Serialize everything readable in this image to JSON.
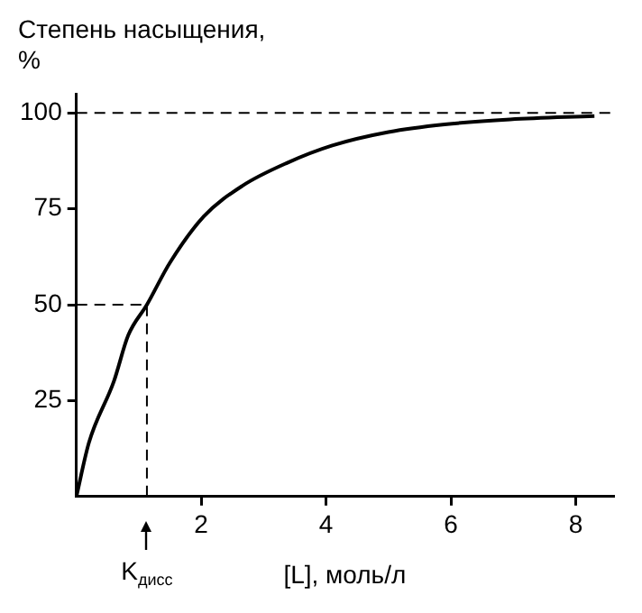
{
  "chart_data": {
    "type": "line",
    "ylabel": "Степень насыщения, %",
    "xlabel": "[L], моль/л",
    "x": [
      0,
      0.2,
      0.6,
      0.83,
      1.13,
      1.5,
      2.04,
      2.66,
      3.38,
      4.1,
      5.0,
      5.9,
      6.95,
      8.3
    ],
    "series": [
      {
        "color": "#000000",
        "values": [
          0,
          14,
          30,
          42,
          50,
          61,
          73,
          81,
          87,
          91.5,
          95,
          97,
          98.3,
          99.2
        ]
      }
    ],
    "xlim": [
      0,
      8.6
    ],
    "ylim": [
      0,
      105
    ],
    "xticks": [
      2,
      4,
      6,
      8
    ],
    "yticks": [
      25,
      50,
      75,
      100
    ],
    "grid": false,
    "legend": false,
    "marker": "none",
    "line_style": "solid",
    "ref_lines": [
      {
        "axis": "y",
        "value": 100,
        "line_style": "dashed"
      },
      {
        "axis": "y",
        "value": 50,
        "line_style": "dashed"
      },
      {
        "axis": "x",
        "value": 1.13,
        "label": "K$_{дисс}$",
        "line_style": "dashed"
      }
    ]
  }
}
